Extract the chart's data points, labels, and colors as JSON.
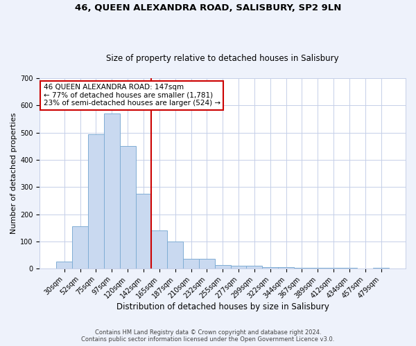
{
  "title1": "46, QUEEN ALEXANDRA ROAD, SALISBURY, SP2 9LN",
  "title2": "Size of property relative to detached houses in Salisbury",
  "xlabel": "Distribution of detached houses by size in Salisbury",
  "ylabel": "Number of detached properties",
  "bar_labels": [
    "30sqm",
    "52sqm",
    "75sqm",
    "97sqm",
    "120sqm",
    "142sqm",
    "165sqm",
    "187sqm",
    "210sqm",
    "232sqm",
    "255sqm",
    "277sqm",
    "299sqm",
    "322sqm",
    "344sqm",
    "367sqm",
    "389sqm",
    "412sqm",
    "434sqm",
    "457sqm",
    "479sqm"
  ],
  "bar_values": [
    25,
    155,
    495,
    570,
    450,
    275,
    140,
    100,
    37,
    35,
    13,
    10,
    10,
    5,
    5,
    3,
    3,
    2,
    2,
    1,
    3
  ],
  "bar_color": "#c9d9f0",
  "bar_edge_color": "#7fadd4",
  "vline_color": "#cc0000",
  "vline_x_idx": 5.5,
  "annotation_line1": "46 QUEEN ALEXANDRA ROAD: 147sqm",
  "annotation_line2": "← 77% of detached houses are smaller (1,781)",
  "annotation_line3": "23% of semi-detached houses are larger (524) →",
  "annotation_box_edge_color": "#cc0000",
  "annotation_box_face_color": "#ffffff",
  "ylim": [
    0,
    700
  ],
  "yticks": [
    0,
    100,
    200,
    300,
    400,
    500,
    600,
    700
  ],
  "footer1": "Contains HM Land Registry data © Crown copyright and database right 2024.",
  "footer2": "Contains public sector information licensed under the Open Government Licence v3.0.",
  "background_color": "#eef2fb",
  "plot_background_color": "#ffffff",
  "grid_color": "#c5cfe8",
  "title1_fontsize": 9.5,
  "title2_fontsize": 8.5,
  "tick_fontsize": 7,
  "annotation_fontsize": 7.5
}
